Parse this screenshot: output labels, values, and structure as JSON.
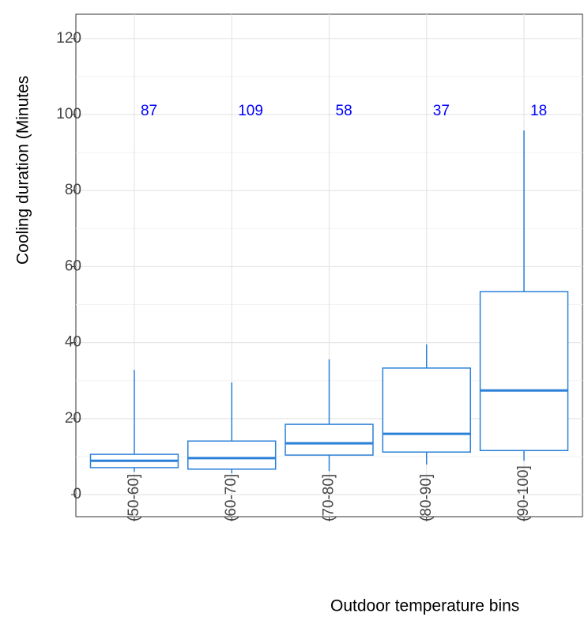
{
  "chart_data": {
    "type": "box",
    "x_label": "Outdoor temperature bins",
    "y_label": "Cooling duration (Minutes",
    "categories": [
      "(50-60]",
      "(60-70]",
      "(70-80]",
      "(80-90]",
      "(90-100]"
    ],
    "boxes": [
      {
        "whislo": 6.0,
        "q1": 7.1,
        "med": 8.9,
        "q3": 10.6,
        "whishi": 32.8
      },
      {
        "whislo": 5.6,
        "q1": 6.7,
        "med": 9.6,
        "q3": 14.1,
        "whishi": 29.5
      },
      {
        "whislo": 6.2,
        "q1": 10.4,
        "med": 13.5,
        "q3": 18.5,
        "whishi": 35.6
      },
      {
        "whislo": 7.9,
        "q1": 11.2,
        "med": 16.0,
        "q3": 33.3,
        "whishi": 39.5
      },
      {
        "whislo": 8.9,
        "q1": 11.6,
        "med": 27.4,
        "q3": 53.4,
        "whishi": 95.8
      }
    ],
    "counts": [
      87,
      109,
      58,
      37,
      18
    ],
    "color": "#2b80d8",
    "count_color": "#0000ff",
    "ylim": [
      -5.8,
      126.4
    ],
    "yticks": [
      0,
      20,
      40,
      60,
      80,
      100,
      120
    ],
    "grid": true
  }
}
